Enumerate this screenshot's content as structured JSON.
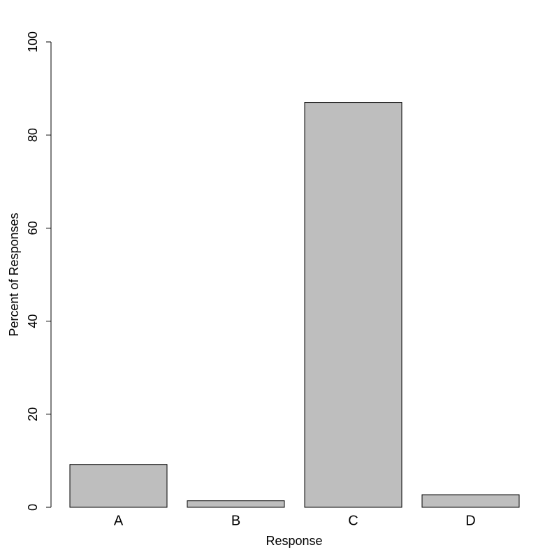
{
  "chart_data": {
    "type": "bar",
    "x_label": "Response",
    "y_label": "Percent of Responses",
    "categories": [
      "A",
      "B",
      "C",
      "D"
    ],
    "values": [
      9.2,
      1.4,
      87,
      2.7
    ],
    "color": "#bebebe",
    "ylim": [
      0,
      100
    ],
    "yticks": [
      0,
      20,
      40,
      60,
      80,
      100
    ]
  }
}
